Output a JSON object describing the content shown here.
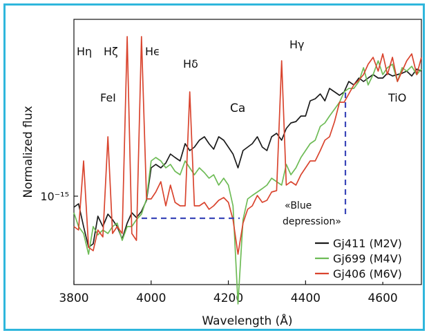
{
  "frame_color": "#2fb6dc",
  "chart_data": {
    "type": "line",
    "title": "",
    "xlabel": "Wavelength (Å)",
    "ylabel": "Normalized flux",
    "xlim": [
      3800,
      4700
    ],
    "x_ticks": [
      3800,
      4000,
      4200,
      4400,
      4600
    ],
    "y_scale": "log",
    "y_tick_label": "10⁻¹⁵",
    "grid": false,
    "legend_position": "bottom-right",
    "series": [
      {
        "name": "Gj411 (M2V)",
        "color": "#1a1a1a",
        "x": [
          3800,
          3812,
          3825,
          3838,
          3850,
          3862,
          3875,
          3888,
          3900,
          3912,
          3925,
          3938,
          3950,
          3962,
          3975,
          3988,
          4000,
          4012,
          4025,
          4038,
          4050,
          4062,
          4075,
          4088,
          4100,
          4112,
          4125,
          4138,
          4150,
          4162,
          4175,
          4188,
          4200,
          4212,
          4225,
          4238,
          4250,
          4262,
          4275,
          4288,
          4300,
          4312,
          4325,
          4338,
          4350,
          4362,
          4375,
          4388,
          4400,
          4412,
          4425,
          4438,
          4450,
          4462,
          4475,
          4488,
          4500,
          4512,
          4525,
          4538,
          4550,
          4562,
          4575,
          4588,
          4600,
          4612,
          4625,
          4638,
          4650,
          4662,
          4675,
          4688,
          4700
        ],
        "y": [
          272,
          267,
          300,
          330,
          325,
          285,
          300,
          282,
          290,
          300,
          318,
          295,
          280,
          287,
          278,
          262,
          215,
          210,
          215,
          208,
          195,
          200,
          205,
          180,
          190,
          185,
          175,
          170,
          180,
          188,
          170,
          175,
          185,
          195,
          215,
          190,
          185,
          180,
          170,
          185,
          190,
          170,
          165,
          175,
          158,
          150,
          148,
          140,
          140,
          118,
          115,
          108,
          118,
          100,
          105,
          110,
          105,
          90,
          95,
          85,
          90,
          85,
          80,
          85,
          85,
          78,
          82,
          80,
          78,
          75,
          82,
          72,
          75
        ]
      },
      {
        "name": "Gj699 (M4V)",
        "color": "#6dbb55",
        "x": [
          3800,
          3812,
          3825,
          3838,
          3850,
          3862,
          3875,
          3888,
          3900,
          3912,
          3925,
          3938,
          3950,
          3962,
          3975,
          3988,
          4000,
          4012,
          4025,
          4038,
          4050,
          4062,
          4075,
          4088,
          4100,
          4112,
          4125,
          4138,
          4150,
          4162,
          4175,
          4188,
          4200,
          4212,
          4225,
          4238,
          4250,
          4262,
          4275,
          4288,
          4300,
          4312,
          4325,
          4338,
          4350,
          4362,
          4375,
          4388,
          4400,
          4412,
          4425,
          4438,
          4450,
          4462,
          4475,
          4488,
          4500,
          4512,
          4525,
          4538,
          4550,
          4562,
          4575,
          4588,
          4600,
          4612,
          4625,
          4638,
          4650,
          4662,
          4675,
          4688,
          4700
        ],
        "y": [
          280,
          300,
          310,
          340,
          300,
          312,
          305,
          310,
          300,
          295,
          320,
          300,
          300,
          290,
          282,
          260,
          205,
          200,
          205,
          215,
          210,
          220,
          225,
          205,
          215,
          225,
          215,
          222,
          230,
          225,
          240,
          230,
          240,
          270,
          412,
          290,
          260,
          255,
          250,
          245,
          240,
          230,
          235,
          240,
          210,
          225,
          215,
          200,
          190,
          180,
          175,
          155,
          150,
          140,
          130,
          120,
          105,
          100,
          100,
          90,
          70,
          95,
          80,
          60,
          80,
          70,
          65,
          90,
          70,
          75,
          68,
          80,
          72
        ]
      },
      {
        "name": "Gj406 (M6V)",
        "color": "#d9442e",
        "x": [
          3800,
          3812,
          3825,
          3838,
          3850,
          3862,
          3875,
          3888,
          3900,
          3912,
          3925,
          3938,
          3950,
          3962,
          3975,
          3988,
          4000,
          4012,
          4025,
          4038,
          4050,
          4062,
          4075,
          4088,
          4100,
          4112,
          4125,
          4138,
          4150,
          4162,
          4175,
          4188,
          4200,
          4212,
          4225,
          4238,
          4250,
          4262,
          4275,
          4288,
          4300,
          4312,
          4325,
          4338,
          4350,
          4362,
          4375,
          4388,
          4400,
          4412,
          4425,
          4438,
          4450,
          4462,
          4475,
          4488,
          4500,
          4512,
          4525,
          4538,
          4550,
          4562,
          4575,
          4588,
          4600,
          4612,
          4625,
          4638,
          4650,
          4662,
          4675,
          4688,
          4700
        ],
        "y": [
          300,
          305,
          205,
          330,
          335,
          305,
          315,
          170,
          310,
          300,
          310,
          25,
          310,
          320,
          25,
          260,
          260,
          250,
          235,
          270,
          240,
          265,
          270,
          270,
          105,
          270,
          270,
          265,
          275,
          270,
          262,
          258,
          265,
          290,
          340,
          295,
          275,
          270,
          255,
          265,
          262,
          250,
          248,
          60,
          240,
          235,
          240,
          225,
          215,
          205,
          205,
          190,
          175,
          170,
          148,
          120,
          120,
          108,
          95,
          88,
          80,
          65,
          55,
          75,
          50,
          80,
          55,
          90,
          75,
          60,
          50,
          80,
          55
        ]
      }
    ],
    "annotations": [
      {
        "text": "Hη",
        "x": 3808
      },
      {
        "text": "Hζ",
        "x": 3880
      },
      {
        "text": "Hϵ",
        "x": 3968
      },
      {
        "text": "Hδ",
        "x": 4075
      },
      {
        "text": "Hγ",
        "x": 4335
      },
      {
        "text": "FeI",
        "x": 3840
      },
      {
        "text": "Ca",
        "x": 4210
      },
      {
        "text": "TiO",
        "x": 4575
      },
      {
        "text": "«Blue",
        "x": 4402
      },
      {
        "text": "depression»",
        "x": 4392
      }
    ]
  }
}
